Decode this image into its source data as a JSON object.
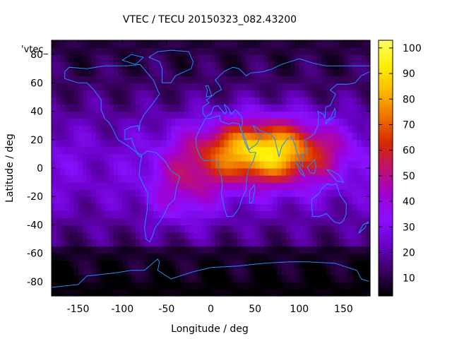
{
  "chart_data": {
    "type": "heatmap",
    "title": "VTEC / TECU 20150323_082.43200",
    "series_label": "'vtec_",
    "xlabel": "Longitude / deg",
    "ylabel": "Latitude / deg",
    "xlim": [
      -180,
      180
    ],
    "ylim": [
      -90,
      90
    ],
    "x_ticks": [
      -150,
      -100,
      -50,
      0,
      50,
      100,
      150
    ],
    "y_ticks": [
      -80,
      -60,
      -40,
      -20,
      0,
      20,
      40,
      60,
      80
    ],
    "colorbar": {
      "range": [
        3,
        103
      ],
      "ticks": [
        10,
        20,
        30,
        40,
        50,
        60,
        70,
        80,
        90,
        100
      ],
      "palette": [
        "#000000",
        "#3a0060",
        "#6a00c8",
        "#8a10ff",
        "#a000d0",
        "#c01070",
        "#d82800",
        "#ee7000",
        "#fbb800",
        "#ffee00",
        "#ffff60"
      ]
    },
    "grid": false,
    "map_overlay": "coastlines",
    "overlay_color": "#1e8cff",
    "field": {
      "description_values_tecu": {
        "background_min": 8,
        "mid_latitude": 25,
        "equatorial_peak": 95,
        "peak_center_lon": 60,
        "peak_center_lat": 12
      }
    }
  }
}
